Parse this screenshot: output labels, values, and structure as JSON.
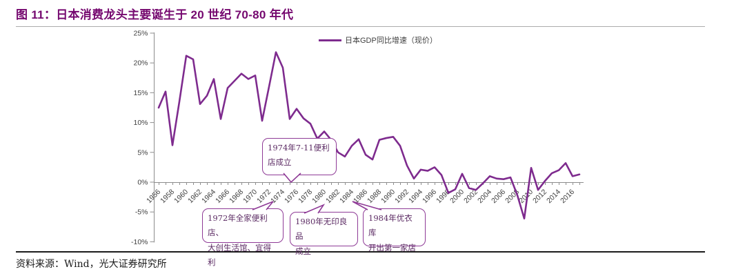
{
  "header": {
    "title": "图 11：日本消费龙头主要诞生于 20 世纪 70-80 年代"
  },
  "legend": {
    "label": "日本GDP同比增速（现价）"
  },
  "footer": {
    "source": "资料来源：Wind，光大证券研究所"
  },
  "colors": {
    "title": "#75086F",
    "line": "#7E2B8E",
    "callout_border": "#8E3A96",
    "callout_text": "#5B2A63",
    "axis": "#8c8c8c",
    "tick_label": "#3f3f3f"
  },
  "callouts": [
    {
      "id": "1974",
      "line1": "1974年7-11便利",
      "line2": "店成立"
    },
    {
      "id": "1972",
      "line1": "1972年全家便利店、",
      "line2": "大创生活馆、宜得利"
    },
    {
      "id": "1980",
      "line1": "1980年无印良品",
      "line2": "成立"
    },
    {
      "id": "1984",
      "line1": "1984年优衣库",
      "line2": "开出第一家店"
    }
  ],
  "chart_data": {
    "type": "line",
    "title": "",
    "xlabel": "",
    "ylabel": "",
    "grid": false,
    "legend_position": "top-center",
    "x_range": [
      1956,
      2017
    ],
    "ylim": [
      -10,
      25
    ],
    "y_ticks": [
      25,
      20,
      15,
      10,
      5,
      0,
      -5,
      -10
    ],
    "y_tick_suffix": "%",
    "x_tick_start": 1956,
    "x_tick_end": 2016,
    "x_tick_step": 2,
    "series": [
      {
        "name": "日本GDP同比增速（现价）",
        "x": [
          1956,
          1957,
          1958,
          1959,
          1960,
          1961,
          1962,
          1963,
          1964,
          1965,
          1966,
          1967,
          1968,
          1969,
          1970,
          1971,
          1972,
          1973,
          1974,
          1975,
          1976,
          1977,
          1978,
          1979,
          1980,
          1981,
          1982,
          1983,
          1984,
          1985,
          1986,
          1987,
          1988,
          1989,
          1990,
          1991,
          1992,
          1993,
          1994,
          1995,
          1996,
          1997,
          1998,
          1999,
          2000,
          2001,
          2002,
          2003,
          2004,
          2005,
          2006,
          2007,
          2008,
          2009,
          2010,
          2011,
          2012,
          2013,
          2014,
          2015,
          2016,
          2017
        ],
        "values": [
          12.5,
          15.2,
          6.2,
          13.5,
          21.2,
          20.6,
          13.1,
          14.5,
          17.3,
          10.6,
          15.8,
          17.0,
          18.2,
          17.3,
          17.9,
          10.3,
          16.0,
          21.8,
          19.2,
          10.6,
          12.3,
          10.7,
          9.8,
          7.3,
          8.5,
          7.1,
          5.0,
          4.3,
          6.1,
          7.2,
          4.6,
          3.8,
          7.1,
          7.4,
          7.6,
          6.1,
          2.8,
          0.6,
          2.1,
          1.9,
          2.5,
          1.2,
          -1.8,
          -1.2,
          1.4,
          -1.0,
          -1.3,
          -0.2,
          1.0,
          0.6,
          0.5,
          0.8,
          -2.2,
          -6.1,
          2.4,
          -1.3,
          0.2,
          1.5,
          2.0,
          3.2,
          1.0,
          1.3
        ]
      }
    ]
  }
}
